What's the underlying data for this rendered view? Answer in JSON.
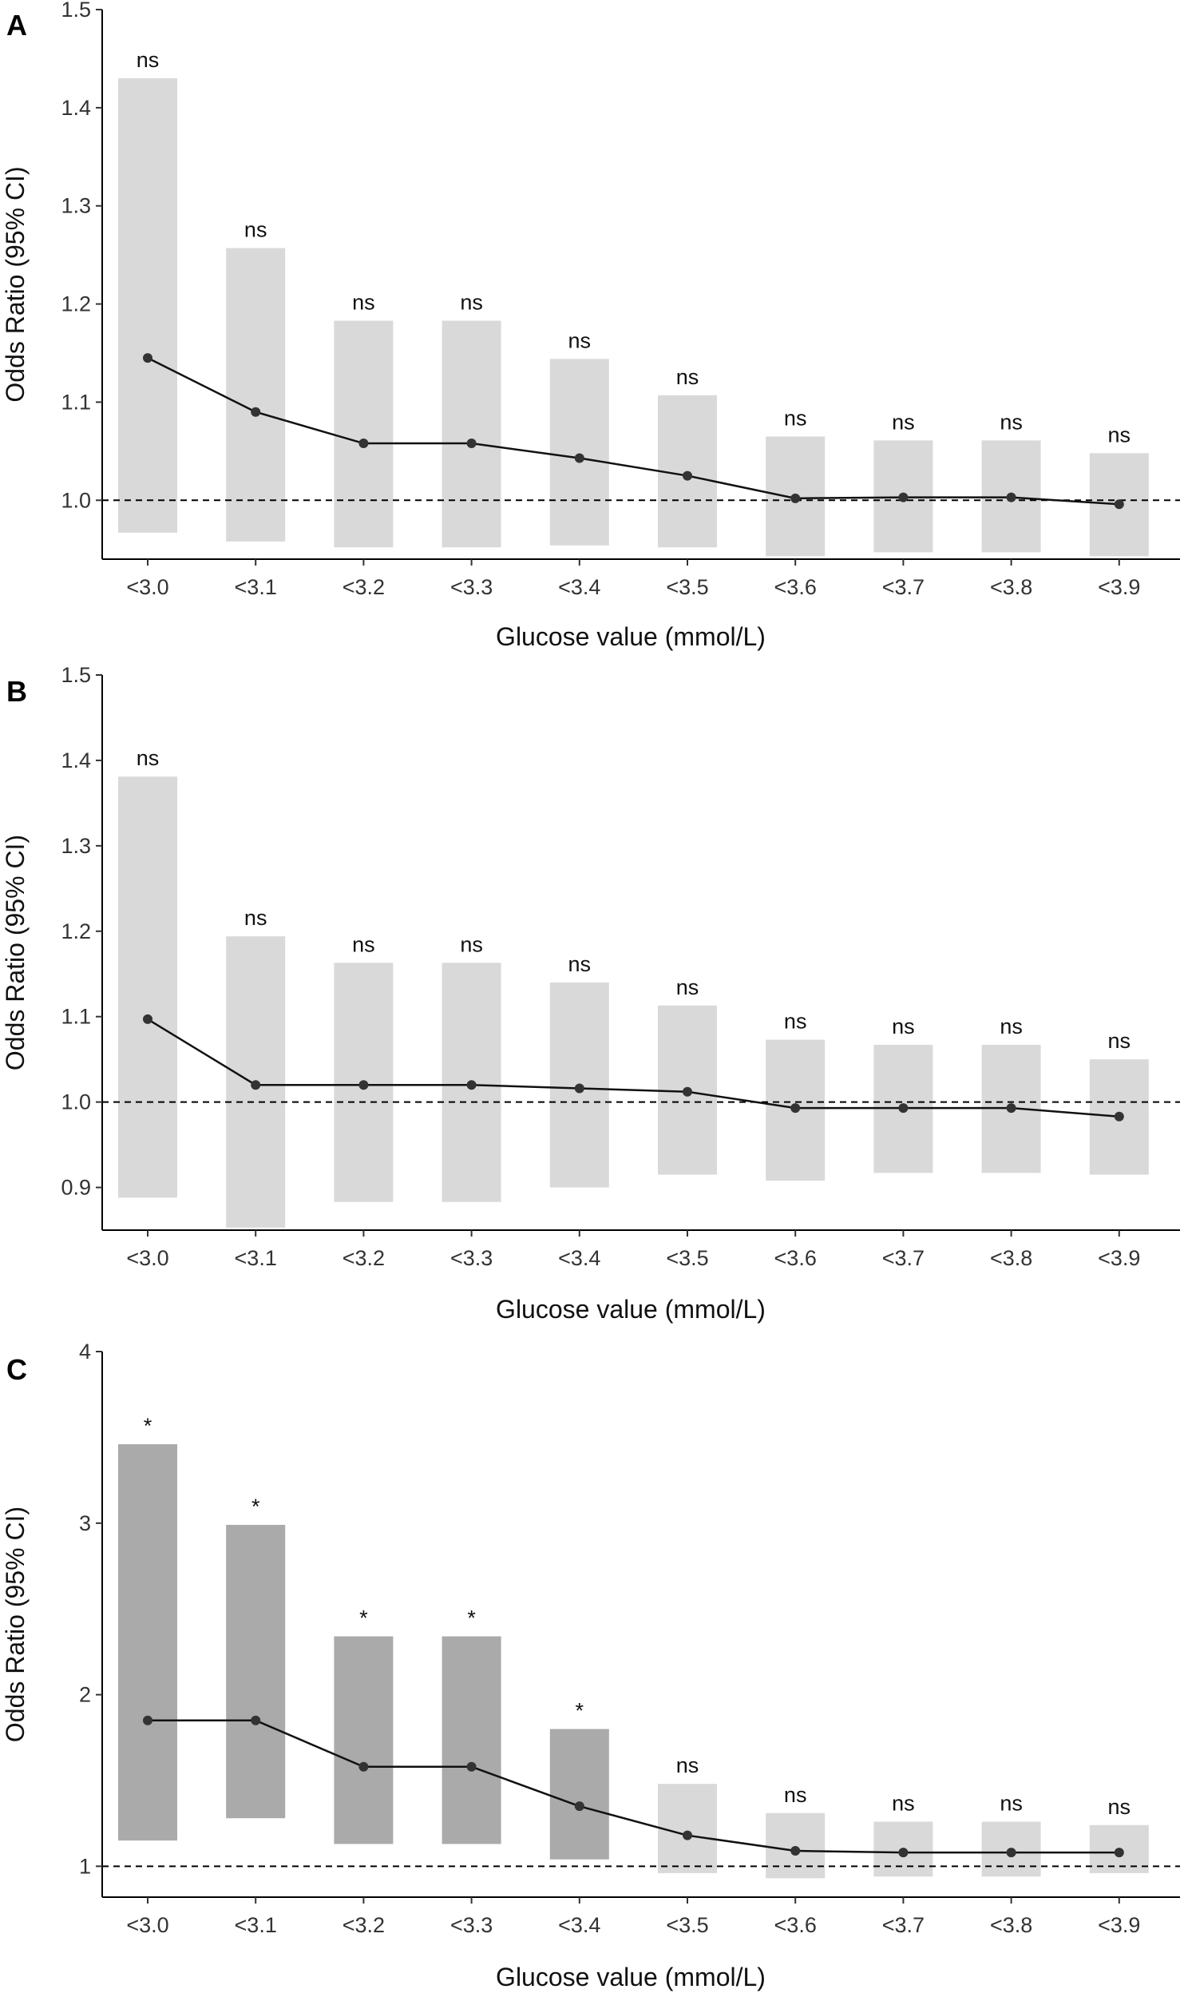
{
  "chart_data": [
    {
      "panel": "A",
      "type": "bar",
      "xlabel": "Glucose value (mmol/L)",
      "ylabel": "Odds Ratio (95% CI)",
      "ylim": [
        0.94,
        1.5
      ],
      "yticks": [
        1.0,
        1.1,
        1.2,
        1.3,
        1.4,
        1.5
      ],
      "ytick_labels": [
        "1.0",
        "1.1",
        "1.2",
        "1.3",
        "1.4",
        "1.5"
      ],
      "reference_line": 1.0,
      "categories": [
        "<3.0",
        "<3.1",
        "<3.2",
        "<3.3",
        "<3.4",
        "<3.5",
        "<3.6",
        "<3.7",
        "<3.8",
        "<3.9"
      ],
      "or": [
        1.145,
        1.09,
        1.058,
        1.058,
        1.043,
        1.025,
        1.002,
        1.003,
        1.003,
        0.996
      ],
      "ci_low": [
        0.967,
        0.958,
        0.952,
        0.952,
        0.954,
        0.952,
        0.943,
        0.947,
        0.947,
        0.943
      ],
      "ci_high": [
        1.43,
        1.257,
        1.183,
        1.183,
        1.144,
        1.107,
        1.065,
        1.061,
        1.061,
        1.048
      ],
      "significance": [
        "ns",
        "ns",
        "ns",
        "ns",
        "ns",
        "ns",
        "ns",
        "ns",
        "ns",
        "ns"
      ],
      "bar_color": "#d9d9d9",
      "sig_bar_color": "#aaaaaa"
    },
    {
      "panel": "B",
      "type": "bar",
      "xlabel": "Glucose value (mmol/L)",
      "ylabel": "Odds Ratio (95% CI)",
      "ylim": [
        0.85,
        1.5
      ],
      "yticks": [
        0.9,
        1.0,
        1.1,
        1.2,
        1.3,
        1.4,
        1.5
      ],
      "ytick_labels": [
        "0.9",
        "1.0",
        "1.1",
        "1.2",
        "1.3",
        "1.4",
        "1.5"
      ],
      "reference_line": 1.0,
      "categories": [
        "<3.0",
        "<3.1",
        "<3.2",
        "<3.3",
        "<3.4",
        "<3.5",
        "<3.6",
        "<3.7",
        "<3.8",
        "<3.9"
      ],
      "or": [
        1.097,
        1.02,
        1.02,
        1.02,
        1.016,
        1.012,
        0.993,
        0.993,
        0.993,
        0.983
      ],
      "ci_low": [
        0.888,
        0.853,
        0.883,
        0.883,
        0.9,
        0.915,
        0.908,
        0.917,
        0.917,
        0.915
      ],
      "ci_high": [
        1.381,
        1.194,
        1.163,
        1.163,
        1.14,
        1.113,
        1.073,
        1.067,
        1.067,
        1.05
      ],
      "significance": [
        "ns",
        "ns",
        "ns",
        "ns",
        "ns",
        "ns",
        "ns",
        "ns",
        "ns",
        "ns"
      ],
      "bar_color": "#d9d9d9",
      "sig_bar_color": "#aaaaaa"
    },
    {
      "panel": "C",
      "type": "bar",
      "xlabel": "Glucose value (mmol/L)",
      "ylabel": "Odds Ratio (95% CI)",
      "ylim": [
        0.82,
        4.0
      ],
      "yticks": [
        1,
        2,
        3,
        4
      ],
      "ytick_labels": [
        "1",
        "2",
        "3",
        "4"
      ],
      "reference_line": 1.0,
      "categories": [
        "<3.0",
        "<3.1",
        "<3.2",
        "<3.3",
        "<3.4",
        "<3.5",
        "<3.6",
        "<3.7",
        "<3.8",
        "<3.9"
      ],
      "or": [
        1.85,
        1.85,
        1.58,
        1.58,
        1.35,
        1.18,
        1.09,
        1.08,
        1.08,
        1.08
      ],
      "ci_low": [
        1.15,
        1.28,
        1.13,
        1.13,
        1.04,
        0.96,
        0.93,
        0.94,
        0.94,
        0.96
      ],
      "ci_high": [
        3.46,
        2.99,
        2.34,
        2.34,
        1.8,
        1.48,
        1.31,
        1.26,
        1.26,
        1.24
      ],
      "significance": [
        "*",
        "*",
        "*",
        "*",
        "*",
        "ns",
        "ns",
        "ns",
        "ns",
        "ns"
      ],
      "bar_color": "#d9d9d9",
      "sig_bar_color": "#aaaaaa"
    }
  ]
}
